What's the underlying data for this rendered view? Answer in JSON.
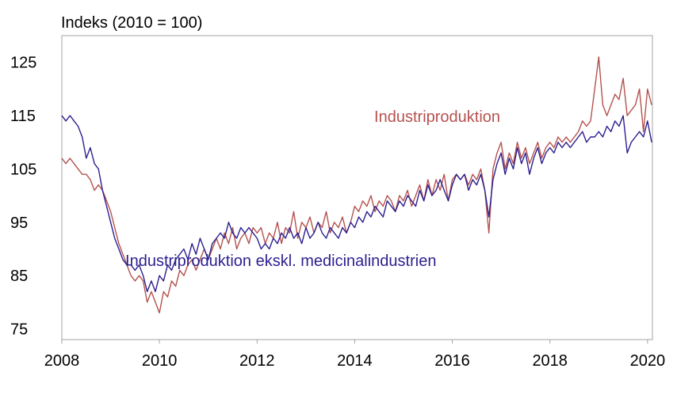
{
  "chart_data": {
    "type": "line",
    "title": "",
    "ylabel": "Indeks (2010 = 100)",
    "xlabel": "",
    "xlim": [
      2008.0,
      2020.1
    ],
    "ylim": [
      73,
      130
    ],
    "x_ticks": [
      2008,
      2010,
      2012,
      2014,
      2016,
      2018,
      2020
    ],
    "y_ticks": [
      75,
      85,
      95,
      105,
      115,
      125
    ],
    "grid": false,
    "colors": {
      "series1": "#b5524f",
      "series2": "#2b1f8f",
      "axis": "#a3a3a3",
      "text": "#000000"
    },
    "series": [
      {
        "name": "Industriproduktion",
        "label_anchor": [
          2014.4,
          113.8
        ],
        "points": [
          [
            2008.0,
            107
          ],
          [
            2008.083,
            106
          ],
          [
            2008.167,
            107
          ],
          [
            2008.25,
            106
          ],
          [
            2008.333,
            105
          ],
          [
            2008.417,
            104
          ],
          [
            2008.5,
            104
          ],
          [
            2008.583,
            103
          ],
          [
            2008.667,
            101
          ],
          [
            2008.75,
            102
          ],
          [
            2008.833,
            101
          ],
          [
            2008.917,
            99
          ],
          [
            2009.0,
            97
          ],
          [
            2009.083,
            94
          ],
          [
            2009.167,
            91
          ],
          [
            2009.25,
            89
          ],
          [
            2009.333,
            87
          ],
          [
            2009.417,
            85
          ],
          [
            2009.5,
            84
          ],
          [
            2009.583,
            85
          ],
          [
            2009.667,
            84
          ],
          [
            2009.75,
            80
          ],
          [
            2009.833,
            82
          ],
          [
            2009.917,
            80
          ],
          [
            2010.0,
            78
          ],
          [
            2010.083,
            82
          ],
          [
            2010.167,
            81
          ],
          [
            2010.25,
            84
          ],
          [
            2010.333,
            83
          ],
          [
            2010.417,
            86
          ],
          [
            2010.5,
            85
          ],
          [
            2010.583,
            87
          ],
          [
            2010.667,
            88
          ],
          [
            2010.75,
            86
          ],
          [
            2010.833,
            88
          ],
          [
            2010.917,
            90
          ],
          [
            2011.0,
            88
          ],
          [
            2011.083,
            90
          ],
          [
            2011.167,
            92
          ],
          [
            2011.25,
            90
          ],
          [
            2011.333,
            93
          ],
          [
            2011.417,
            91
          ],
          [
            2011.5,
            94
          ],
          [
            2011.583,
            90
          ],
          [
            2011.667,
            92
          ],
          [
            2011.75,
            93
          ],
          [
            2011.833,
            91
          ],
          [
            2011.917,
            94
          ],
          [
            2012.0,
            93
          ],
          [
            2012.083,
            94
          ],
          [
            2012.167,
            91
          ],
          [
            2012.25,
            93
          ],
          [
            2012.333,
            92
          ],
          [
            2012.417,
            95
          ],
          [
            2012.5,
            91
          ],
          [
            2012.583,
            94
          ],
          [
            2012.667,
            93
          ],
          [
            2012.75,
            97
          ],
          [
            2012.833,
            92
          ],
          [
            2012.917,
            95
          ],
          [
            2013.0,
            94
          ],
          [
            2013.083,
            96
          ],
          [
            2013.167,
            93
          ],
          [
            2013.25,
            95
          ],
          [
            2013.333,
            94
          ],
          [
            2013.417,
            97
          ],
          [
            2013.5,
            93
          ],
          [
            2013.583,
            95
          ],
          [
            2013.667,
            94
          ],
          [
            2013.75,
            96
          ],
          [
            2013.833,
            93
          ],
          [
            2013.917,
            95
          ],
          [
            2014.0,
            98
          ],
          [
            2014.083,
            97
          ],
          [
            2014.167,
            99
          ],
          [
            2014.25,
            98
          ],
          [
            2014.333,
            100
          ],
          [
            2014.417,
            97
          ],
          [
            2014.5,
            99
          ],
          [
            2014.583,
            98
          ],
          [
            2014.667,
            100
          ],
          [
            2014.75,
            99
          ],
          [
            2014.833,
            97
          ],
          [
            2014.917,
            100
          ],
          [
            2015.0,
            99
          ],
          [
            2015.083,
            101
          ],
          [
            2015.167,
            98
          ],
          [
            2015.25,
            100
          ],
          [
            2015.333,
            102
          ],
          [
            2015.417,
            99
          ],
          [
            2015.5,
            103
          ],
          [
            2015.583,
            100
          ],
          [
            2015.667,
            103
          ],
          [
            2015.75,
            101
          ],
          [
            2015.833,
            104
          ],
          [
            2015.917,
            99
          ],
          [
            2016.0,
            103
          ],
          [
            2016.083,
            104
          ],
          [
            2016.167,
            103
          ],
          [
            2016.25,
            104
          ],
          [
            2016.333,
            102
          ],
          [
            2016.417,
            104
          ],
          [
            2016.5,
            103
          ],
          [
            2016.583,
            105
          ],
          [
            2016.667,
            101
          ],
          [
            2016.75,
            93
          ],
          [
            2016.833,
            105
          ],
          [
            2016.917,
            108
          ],
          [
            2017.0,
            110
          ],
          [
            2017.083,
            105
          ],
          [
            2017.167,
            108
          ],
          [
            2017.25,
            106
          ],
          [
            2017.333,
            110
          ],
          [
            2017.417,
            107
          ],
          [
            2017.5,
            109
          ],
          [
            2017.583,
            106
          ],
          [
            2017.667,
            108
          ],
          [
            2017.75,
            110
          ],
          [
            2017.833,
            107
          ],
          [
            2017.917,
            109
          ],
          [
            2018.0,
            110
          ],
          [
            2018.083,
            109
          ],
          [
            2018.167,
            111
          ],
          [
            2018.25,
            110
          ],
          [
            2018.333,
            111
          ],
          [
            2018.417,
            110
          ],
          [
            2018.5,
            111
          ],
          [
            2018.583,
            112
          ],
          [
            2018.667,
            114
          ],
          [
            2018.75,
            113
          ],
          [
            2018.833,
            114
          ],
          [
            2018.917,
            120
          ],
          [
            2019.0,
            126
          ],
          [
            2019.083,
            117
          ],
          [
            2019.167,
            115
          ],
          [
            2019.25,
            117
          ],
          [
            2019.333,
            119
          ],
          [
            2019.417,
            118
          ],
          [
            2019.5,
            122
          ],
          [
            2019.583,
            115
          ],
          [
            2019.667,
            116
          ],
          [
            2019.75,
            117
          ],
          [
            2019.833,
            120
          ],
          [
            2019.917,
            112
          ],
          [
            2020.0,
            120
          ],
          [
            2020.083,
            117
          ]
        ]
      },
      {
        "name": "Industriproduktion ekskl. medicinalindustrien",
        "label_anchor": [
          2009.3,
          86.8
        ],
        "points": [
          [
            2008.0,
            115
          ],
          [
            2008.083,
            114
          ],
          [
            2008.167,
            115
          ],
          [
            2008.25,
            114
          ],
          [
            2008.333,
            113
          ],
          [
            2008.417,
            111
          ],
          [
            2008.5,
            107
          ],
          [
            2008.583,
            109
          ],
          [
            2008.667,
            106
          ],
          [
            2008.75,
            105
          ],
          [
            2008.833,
            101
          ],
          [
            2008.917,
            98
          ],
          [
            2009.0,
            95
          ],
          [
            2009.083,
            92
          ],
          [
            2009.167,
            90
          ],
          [
            2009.25,
            88
          ],
          [
            2009.333,
            87
          ],
          [
            2009.417,
            87
          ],
          [
            2009.5,
            86
          ],
          [
            2009.583,
            87
          ],
          [
            2009.667,
            85
          ],
          [
            2009.75,
            82
          ],
          [
            2009.833,
            84
          ],
          [
            2009.917,
            82
          ],
          [
            2010.0,
            85
          ],
          [
            2010.083,
            84
          ],
          [
            2010.167,
            87
          ],
          [
            2010.25,
            86
          ],
          [
            2010.333,
            88
          ],
          [
            2010.417,
            89
          ],
          [
            2010.5,
            90
          ],
          [
            2010.583,
            88
          ],
          [
            2010.667,
            91
          ],
          [
            2010.75,
            89
          ],
          [
            2010.833,
            92
          ],
          [
            2010.917,
            90
          ],
          [
            2011.0,
            88
          ],
          [
            2011.083,
            91
          ],
          [
            2011.167,
            92
          ],
          [
            2011.25,
            93
          ],
          [
            2011.333,
            92
          ],
          [
            2011.417,
            95
          ],
          [
            2011.5,
            93
          ],
          [
            2011.583,
            92
          ],
          [
            2011.667,
            94
          ],
          [
            2011.75,
            93
          ],
          [
            2011.833,
            94
          ],
          [
            2011.917,
            93
          ],
          [
            2012.0,
            92
          ],
          [
            2012.083,
            90
          ],
          [
            2012.167,
            91
          ],
          [
            2012.25,
            90
          ],
          [
            2012.333,
            92
          ],
          [
            2012.417,
            91
          ],
          [
            2012.5,
            93
          ],
          [
            2012.583,
            92
          ],
          [
            2012.667,
            94
          ],
          [
            2012.75,
            92
          ],
          [
            2012.833,
            93
          ],
          [
            2012.917,
            91
          ],
          [
            2013.0,
            94
          ],
          [
            2013.083,
            92
          ],
          [
            2013.167,
            93
          ],
          [
            2013.25,
            95
          ],
          [
            2013.333,
            93
          ],
          [
            2013.417,
            92
          ],
          [
            2013.5,
            94
          ],
          [
            2013.583,
            93
          ],
          [
            2013.667,
            92
          ],
          [
            2013.75,
            94
          ],
          [
            2013.833,
            93
          ],
          [
            2013.917,
            95
          ],
          [
            2014.0,
            94
          ],
          [
            2014.083,
            96
          ],
          [
            2014.167,
            95
          ],
          [
            2014.25,
            97
          ],
          [
            2014.333,
            96
          ],
          [
            2014.417,
            98
          ],
          [
            2014.5,
            97
          ],
          [
            2014.583,
            96
          ],
          [
            2014.667,
            99
          ],
          [
            2014.75,
            98
          ],
          [
            2014.833,
            97
          ],
          [
            2014.917,
            99
          ],
          [
            2015.0,
            98
          ],
          [
            2015.083,
            100
          ],
          [
            2015.167,
            99
          ],
          [
            2015.25,
            98
          ],
          [
            2015.333,
            101
          ],
          [
            2015.417,
            99
          ],
          [
            2015.5,
            102
          ],
          [
            2015.583,
            100
          ],
          [
            2015.667,
            101
          ],
          [
            2015.75,
            103
          ],
          [
            2015.833,
            101
          ],
          [
            2015.917,
            99
          ],
          [
            2016.0,
            102
          ],
          [
            2016.083,
            104
          ],
          [
            2016.167,
            103
          ],
          [
            2016.25,
            104
          ],
          [
            2016.333,
            101
          ],
          [
            2016.417,
            103
          ],
          [
            2016.5,
            102
          ],
          [
            2016.583,
            104
          ],
          [
            2016.667,
            101
          ],
          [
            2016.75,
            96
          ],
          [
            2016.833,
            103
          ],
          [
            2016.917,
            106
          ],
          [
            2017.0,
            108
          ],
          [
            2017.083,
            104
          ],
          [
            2017.167,
            107
          ],
          [
            2017.25,
            105
          ],
          [
            2017.333,
            109
          ],
          [
            2017.417,
            106
          ],
          [
            2017.5,
            108
          ],
          [
            2017.583,
            104
          ],
          [
            2017.667,
            107
          ],
          [
            2017.75,
            109
          ],
          [
            2017.833,
            106
          ],
          [
            2017.917,
            108
          ],
          [
            2018.0,
            109
          ],
          [
            2018.083,
            108
          ],
          [
            2018.167,
            110
          ],
          [
            2018.25,
            109
          ],
          [
            2018.333,
            110
          ],
          [
            2018.417,
            109
          ],
          [
            2018.5,
            110
          ],
          [
            2018.583,
            111
          ],
          [
            2018.667,
            112
          ],
          [
            2018.75,
            110
          ],
          [
            2018.833,
            111
          ],
          [
            2018.917,
            111
          ],
          [
            2019.0,
            112
          ],
          [
            2019.083,
            111
          ],
          [
            2019.167,
            113
          ],
          [
            2019.25,
            112
          ],
          [
            2019.333,
            114
          ],
          [
            2019.417,
            113
          ],
          [
            2019.5,
            115
          ],
          [
            2019.583,
            108
          ],
          [
            2019.667,
            110
          ],
          [
            2019.75,
            111
          ],
          [
            2019.833,
            112
          ],
          [
            2019.917,
            111
          ],
          [
            2020.0,
            114
          ],
          [
            2020.083,
            110
          ]
        ]
      }
    ]
  }
}
